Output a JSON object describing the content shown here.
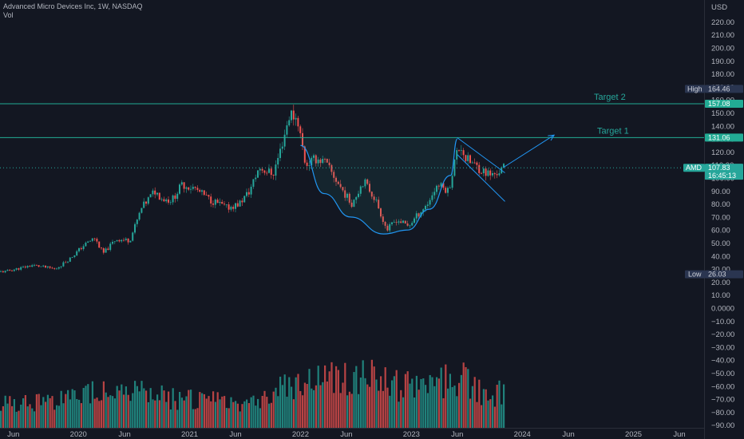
{
  "header": {
    "symbol_line": "Advanced Micro Devices Inc, 1W, NASDAQ",
    "volume_label": "Vol"
  },
  "price_axis": {
    "currency": "USD",
    "ticks": [
      "220.00",
      "210.00",
      "200.00",
      "190.00",
      "180.00",
      "170.00",
      "160.00",
      "150.00",
      "140.00",
      "130.00",
      "120.00",
      "110.00",
      "100.00",
      "90.00",
      "80.00",
      "70.00",
      "60.00",
      "50.00",
      "40.00",
      "30.00",
      "20.00",
      "10.00",
      "0.0000",
      "−10.00",
      "−20.00",
      "−30.00",
      "−40.00",
      "−50.00",
      "−60.00",
      "−70.00",
      "−80.00",
      "−90.00"
    ]
  },
  "time_axis": {
    "ticks": [
      "Jun",
      "2020",
      "Jun",
      "2021",
      "Jun",
      "2022",
      "Jun",
      "2023",
      "Jun",
      "2024",
      "Jun",
      "2025",
      "Jun"
    ]
  },
  "tags": {
    "high_label": "High",
    "high_value": "164.46",
    "target2_value": "157.08",
    "target1_value": "131.06",
    "amd_label": "AMD",
    "amd_price": "107.83",
    "amd_countdown": "16:45:13",
    "low_label": "Low",
    "low_value": "26.03"
  },
  "annotations": {
    "target1_label": "Target 1",
    "target2_label": "Target 2"
  },
  "colors": {
    "background": "#131722",
    "up": "#26a69a",
    "down": "#ef5350",
    "drawing": "#2196f3",
    "target_line": "#22ab94",
    "axis_text": "#b2b5be"
  },
  "chart_data": {
    "type": "candlestick",
    "interval": "1W",
    "ylim": [
      -95,
      228
    ],
    "levels": {
      "target_2": 157.08,
      "target_1": 131.06,
      "current": 107.83,
      "high": 164.46,
      "low": 26.03
    },
    "price_path": [
      [
        "2019-05-01",
        28
      ],
      [
        "2019-08-01",
        33
      ],
      [
        "2019-10-15",
        30
      ],
      [
        "2019-12-01",
        38
      ],
      [
        "2020-01-15",
        48
      ],
      [
        "2020-02-20",
        54
      ],
      [
        "2020-03-20",
        42
      ],
      [
        "2020-05-01",
        53
      ],
      [
        "2020-06-15",
        52
      ],
      [
        "2020-07-25",
        77
      ],
      [
        "2020-09-05",
        90
      ],
      [
        "2020-10-01",
        84
      ],
      [
        "2020-11-01",
        83
      ],
      [
        "2020-12-05",
        95
      ],
      [
        "2021-01-15",
        92
      ],
      [
        "2021-03-01",
        84
      ],
      [
        "2021-05-01",
        77
      ],
      [
        "2021-06-10",
        80
      ],
      [
        "2021-07-15",
        90
      ],
      [
        "2021-08-15",
        108
      ],
      [
        "2021-09-30",
        103
      ],
      [
        "2021-10-25",
        122
      ],
      [
        "2021-11-25",
        150
      ],
      [
        "2021-12-20",
        145
      ],
      [
        "2022-01-15",
        110
      ],
      [
        "2022-02-20",
        115
      ],
      [
        "2022-03-20",
        112
      ],
      [
        "2022-05-10",
        93
      ],
      [
        "2022-06-15",
        80
      ],
      [
        "2022-07-25",
        98
      ],
      [
        "2022-09-01",
        84
      ],
      [
        "2022-10-10",
        60
      ],
      [
        "2022-11-10",
        68
      ],
      [
        "2022-12-20",
        63
      ],
      [
        "2023-01-20",
        72
      ],
      [
        "2023-02-20",
        80
      ],
      [
        "2023-03-25",
        95
      ],
      [
        "2023-05-01",
        90
      ],
      [
        "2023-05-25",
        118
      ],
      [
        "2023-06-10",
        125
      ],
      [
        "2023-06-25",
        115
      ],
      [
        "2023-07-25",
        110
      ],
      [
        "2023-08-25",
        105
      ],
      [
        "2023-09-20",
        102
      ],
      [
        "2023-10-15",
        105
      ],
      [
        "2023-10-30",
        107.83
      ]
    ],
    "volume_profile": [
      [
        "2019-05-01",
        34
      ],
      [
        "2019-12-01",
        38
      ],
      [
        "2020-03-01",
        55
      ],
      [
        "2020-08-01",
        45
      ],
      [
        "2020-12-01",
        40
      ],
      [
        "2021-05-01",
        35
      ],
      [
        "2021-09-01",
        40
      ],
      [
        "2021-11-15",
        60
      ],
      [
        "2022-01-15",
        62
      ],
      [
        "2022-05-01",
        70
      ],
      [
        "2022-10-01",
        64
      ],
      [
        "2023-01-15",
        52
      ],
      [
        "2023-05-25",
        70
      ],
      [
        "2023-08-15",
        50
      ],
      [
        "2023-10-30",
        46
      ]
    ],
    "cup_curve": [
      [
        "2022-01-01",
        125
      ],
      [
        "2022-03-20",
        88
      ],
      [
        "2022-06-15",
        70
      ],
      [
        "2022-10-01",
        57
      ],
      [
        "2022-12-20",
        60
      ],
      [
        "2023-03-01",
        76
      ],
      [
        "2023-05-10",
        102
      ],
      [
        "2023-06-01",
        130
      ]
    ],
    "channel": [
      [
        [
          "2023-06-01",
          131
        ],
        [
          "2023-11-05",
          104
        ]
      ],
      [
        [
          "2023-06-01",
          118
        ],
        [
          "2023-11-05",
          82
        ]
      ]
    ],
    "projection_arrow": [
      [
        "2023-10-30",
        108
      ],
      [
        "2024-04-15",
        133
      ]
    ]
  }
}
